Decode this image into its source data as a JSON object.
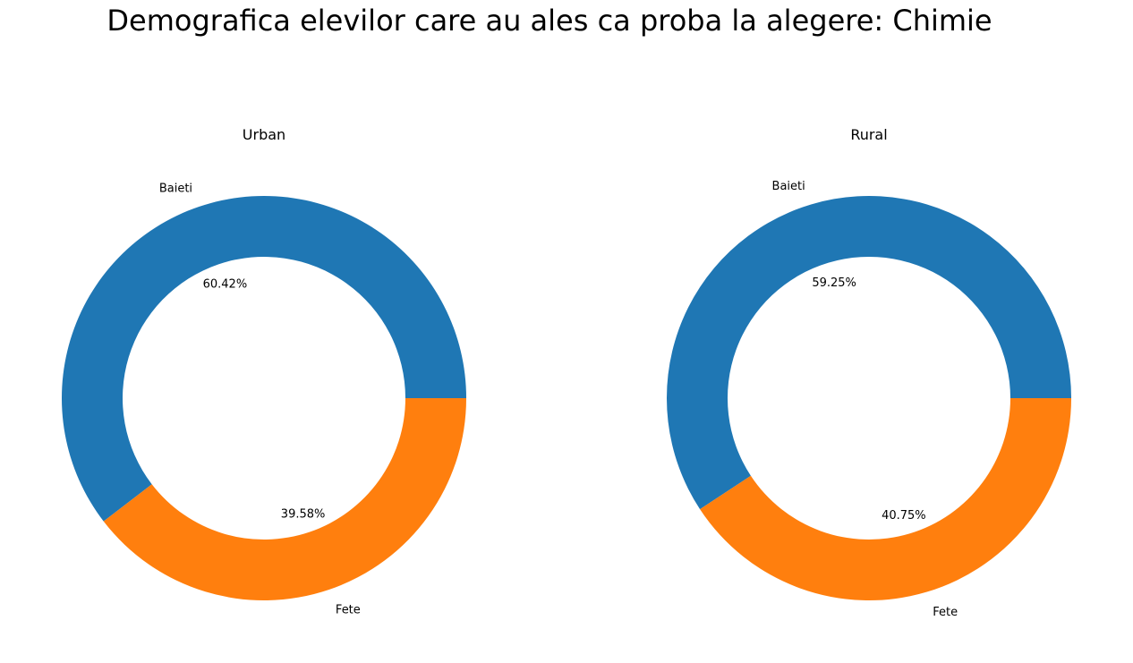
{
  "title": "Demografica elevilor care au ales ca proba la alegere: Chimie",
  "colors": {
    "Baieti": "#1f77b4",
    "Fete": "#ff7f0e"
  },
  "chart_data": [
    {
      "type": "pie",
      "style": "donut",
      "title": "Urban",
      "labels": [
        "Baieti",
        "Fete"
      ],
      "values": [
        60.42,
        39.58
      ],
      "value_labels": [
        "60.42%",
        "39.58%"
      ]
    },
    {
      "type": "pie",
      "style": "donut",
      "title": "Rural",
      "labels": [
        "Baieti",
        "Fete"
      ],
      "values": [
        59.25,
        40.75
      ],
      "value_labels": [
        "59.25%",
        "40.75%"
      ]
    }
  ]
}
